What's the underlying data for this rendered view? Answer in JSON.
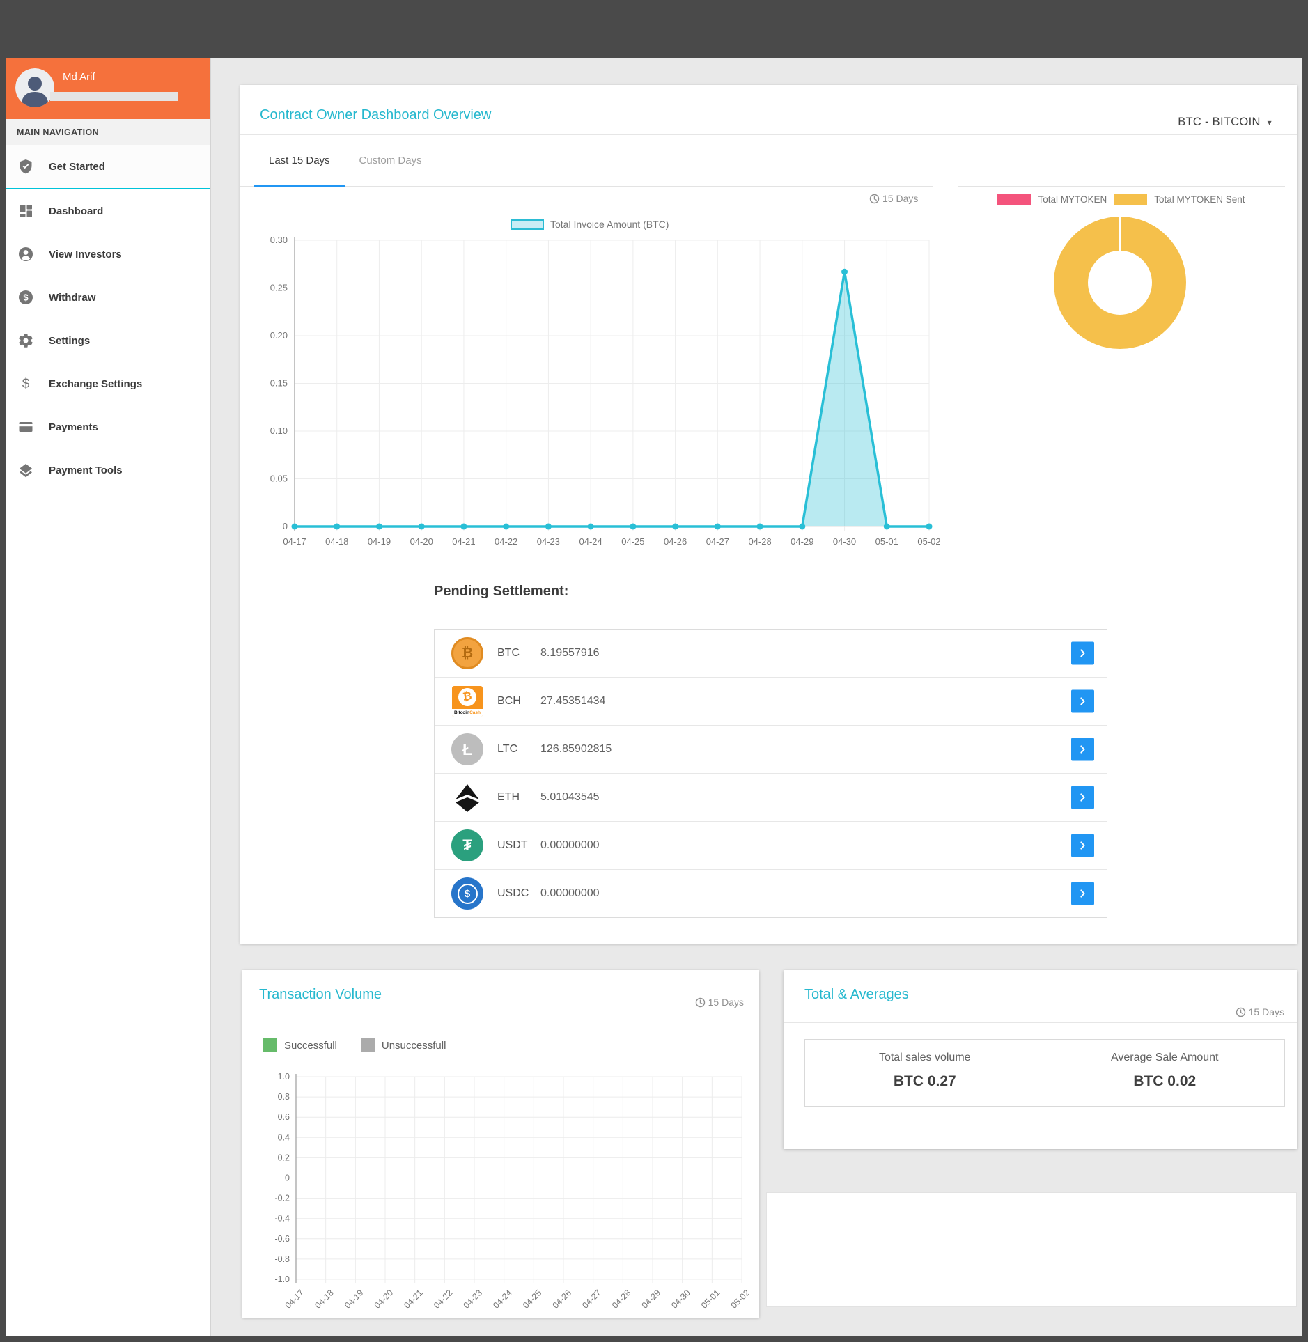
{
  "user": {
    "name": "Md Arif"
  },
  "sidebar": {
    "section_label": "MAIN NAVIGATION",
    "items": [
      {
        "label": "Get Started",
        "icon": "shield-check-icon",
        "active": true
      },
      {
        "label": "Dashboard",
        "icon": "dashboard-grid-icon",
        "active": false
      },
      {
        "label": "View Investors",
        "icon": "person-circle-icon",
        "active": false
      },
      {
        "label": "Withdraw",
        "icon": "dollar-circle-icon",
        "active": false
      },
      {
        "label": "Settings",
        "icon": "gear-icon",
        "active": false
      },
      {
        "label": "Exchange Settings",
        "icon": "dollar-icon",
        "active": false
      },
      {
        "label": "Payments",
        "icon": "credit-card-icon",
        "active": false
      },
      {
        "label": "Payment Tools",
        "icon": "layers-icon",
        "active": false
      }
    ]
  },
  "overview": {
    "title": "Contract Owner Dashboard Overview",
    "currency_selector": "BTC - BITCOIN",
    "tabs": [
      {
        "label": "Last 15 Days",
        "active": true
      },
      {
        "label": "Custom Days",
        "active": false
      }
    ],
    "period": "15 Days",
    "invoice_legend": "Total Invoice Amount (BTC)"
  },
  "donut": {
    "legend": [
      {
        "label": "Total MYTOKEN",
        "color": "#f4547c"
      },
      {
        "label": "Total MYTOKEN Sent",
        "color": "#f5c04b"
      }
    ]
  },
  "pending": {
    "heading": "Pending Settlement:",
    "rows": [
      {
        "symbol": "BTC",
        "amount": "8.19557916",
        "icon": "bitcoin-icon"
      },
      {
        "symbol": "BCH",
        "amount": "27.45351434",
        "icon": "bitcoin-cash-icon"
      },
      {
        "symbol": "LTC",
        "amount": "126.85902815",
        "icon": "litecoin-icon"
      },
      {
        "symbol": "ETH",
        "amount": "5.01043545",
        "icon": "ethereum-icon"
      },
      {
        "symbol": "USDT",
        "amount": "0.00000000",
        "icon": "tether-icon"
      },
      {
        "symbol": "USDC",
        "amount": "0.00000000",
        "icon": "usd-coin-icon"
      }
    ]
  },
  "volume": {
    "title": "Transaction Volume",
    "period": "15 Days",
    "legend": [
      {
        "label": "Successfull",
        "color": "#66bb6a"
      },
      {
        "label": "Unsuccessfull",
        "color": "#ababab"
      }
    ]
  },
  "totals": {
    "title": "Total & Averages",
    "period": "15 Days",
    "cells": [
      {
        "label": "Total sales volume",
        "value": "BTC 0.27"
      },
      {
        "label": "Average Sale Amount",
        "value": "BTC 0.02"
      }
    ]
  },
  "chart_data": [
    {
      "id": "invoice-amount",
      "type": "area",
      "legend": "Total Invoice Amount (BTC)",
      "x": [
        "04-17",
        "04-18",
        "04-19",
        "04-20",
        "04-21",
        "04-22",
        "04-23",
        "04-24",
        "04-25",
        "04-26",
        "04-27",
        "04-28",
        "04-29",
        "04-30",
        "05-01",
        "05-02"
      ],
      "values": [
        0,
        0,
        0,
        0,
        0,
        0,
        0,
        0,
        0,
        0,
        0,
        0,
        0,
        0.267,
        0,
        0
      ],
      "ylim": [
        0,
        0.3
      ],
      "ytick_step": 0.05,
      "line_color": "#29bfd6",
      "fill_opacity": 0.33,
      "grid": true,
      "legend_position": "top"
    },
    {
      "id": "mytoken-donut",
      "type": "pie",
      "labels": [
        "Total MYTOKEN",
        "Total MYTOKEN Sent"
      ],
      "values": [
        0,
        100
      ],
      "colors": [
        "#f4547c",
        "#f5c04b"
      ],
      "inner_radius_ratio": 0.48,
      "legend_position": "top"
    },
    {
      "id": "transaction-volume",
      "type": "bar",
      "x": [
        "04-17",
        "04-18",
        "04-19",
        "04-20",
        "04-21",
        "04-22",
        "04-23",
        "04-24",
        "04-25",
        "04-26",
        "04-27",
        "04-28",
        "04-29",
        "04-30",
        "05-01",
        "05-02"
      ],
      "series": [
        {
          "name": "Successfull",
          "color": "#66bb6a",
          "values": []
        },
        {
          "name": "Unsuccessfull",
          "color": "#ababab",
          "values": []
        }
      ],
      "ylim": [
        -1.0,
        1.0
      ],
      "ytick_step": 0.2,
      "grid": true
    }
  ]
}
